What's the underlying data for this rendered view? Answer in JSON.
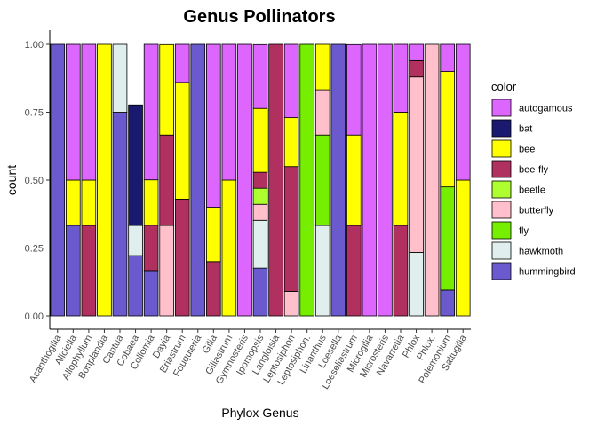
{
  "chart_data": {
    "type": "bar",
    "stacked": true,
    "title": "Genus Pollinators",
    "xlabel": "Phylox Genus",
    "ylabel": "count",
    "ylim": [
      0,
      1
    ],
    "yticks": [
      "0.00",
      "0.25",
      "0.50",
      "0.75",
      "1.00"
    ],
    "grid": false,
    "legend": {
      "title": "color",
      "position": "right"
    },
    "categories": [
      "Acanthogilia",
      "Aliciella",
      "Allophyllum",
      "Bonplandia",
      "Cantua",
      "Cobaea",
      "Collomia",
      "Dayia",
      "Eriastrum",
      "Fouquieria",
      "Gilia",
      "Giliastrum",
      "Gymnosteris",
      "Ipomopsis",
      "Langloisia",
      "Leptosiphon",
      "Leptosiphon.",
      "Linanthus",
      "Loesella",
      "Loeseliastrum",
      "Microgilia",
      "Microsteris",
      "Navarretia",
      "Phlox",
      "Phlox.",
      "Polemonium",
      "Saltugilia"
    ],
    "series": [
      {
        "name": "autogamous",
        "color": "#DD66FF",
        "values": [
          0,
          0.5,
          0.5,
          0,
          0,
          0,
          0.5,
          0,
          0.14,
          0,
          0.6,
          0.5,
          1,
          0.235,
          0,
          0.27,
          0,
          0,
          0,
          0.333,
          1,
          1,
          0.25,
          0.06,
          0,
          0.1,
          0.5
        ]
      },
      {
        "name": "bat",
        "color": "#191970",
        "values": [
          0,
          0,
          0,
          0,
          0,
          0.444,
          0,
          0,
          0,
          0,
          0,
          0,
          0,
          0,
          0,
          0,
          0,
          0,
          0,
          0,
          0,
          0,
          0,
          0,
          0,
          0,
          0
        ]
      },
      {
        "name": "bee",
        "color": "#FFFF00",
        "values": [
          0,
          0.167,
          0.167,
          1,
          0,
          0,
          0.167,
          0.333,
          0.43,
          0,
          0.2,
          0.5,
          0,
          0.235,
          0,
          0.18,
          0,
          0.167,
          0,
          0.333,
          0,
          0,
          0.417,
          0,
          0,
          0.425,
          0.5
        ]
      },
      {
        "name": "bee-fly",
        "color": "#B03060",
        "values": [
          0,
          0,
          0.333,
          0,
          0,
          0,
          0.167,
          0.333,
          0.43,
          0,
          0.2,
          0,
          0,
          0.059,
          1,
          0.46,
          0,
          0,
          0,
          0.333,
          0,
          0,
          0.333,
          0.06,
          0,
          0,
          0
        ]
      },
      {
        "name": "beetle",
        "color": "#ADFF2F",
        "values": [
          0,
          0,
          0,
          0,
          0,
          0,
          0,
          0,
          0,
          0,
          0,
          0,
          0,
          0.059,
          0,
          0,
          0,
          0,
          0,
          0,
          0,
          0,
          0,
          0,
          0,
          0,
          0
        ]
      },
      {
        "name": "butterfly",
        "color": "#FFC0CB",
        "values": [
          0,
          0,
          0,
          0,
          0,
          0,
          0,
          0.333,
          0,
          0,
          0,
          0,
          0,
          0.059,
          0,
          0.09,
          0,
          0.167,
          0,
          0,
          0,
          0,
          0,
          0.646,
          1,
          0,
          0
        ]
      },
      {
        "name": "fly",
        "color": "#76EE00",
        "values": [
          0,
          0,
          0,
          0,
          0,
          0,
          0,
          0,
          0,
          0,
          0,
          0,
          0,
          0,
          0,
          0,
          1,
          0.333,
          0,
          0,
          0,
          0,
          0,
          0,
          0,
          0.38,
          0
        ]
      },
      {
        "name": "hawkmoth",
        "color": "#E0EEEE",
        "values": [
          0,
          0,
          0,
          0,
          0.25,
          0.111,
          0,
          0,
          0,
          0,
          0,
          0,
          0,
          0.176,
          0,
          0,
          0,
          0.333,
          0,
          0,
          0,
          0,
          0,
          0.234,
          0,
          0,
          0
        ]
      },
      {
        "name": "hummingbird",
        "color": "#6A5ACD",
        "values": [
          1,
          0.333,
          0,
          0,
          0.75,
          0.222,
          0.167,
          0,
          0,
          1,
          0,
          0,
          0,
          0.176,
          0,
          0,
          0,
          0,
          1,
          0,
          0,
          0,
          0,
          0,
          0,
          0.095,
          0
        ]
      }
    ]
  }
}
